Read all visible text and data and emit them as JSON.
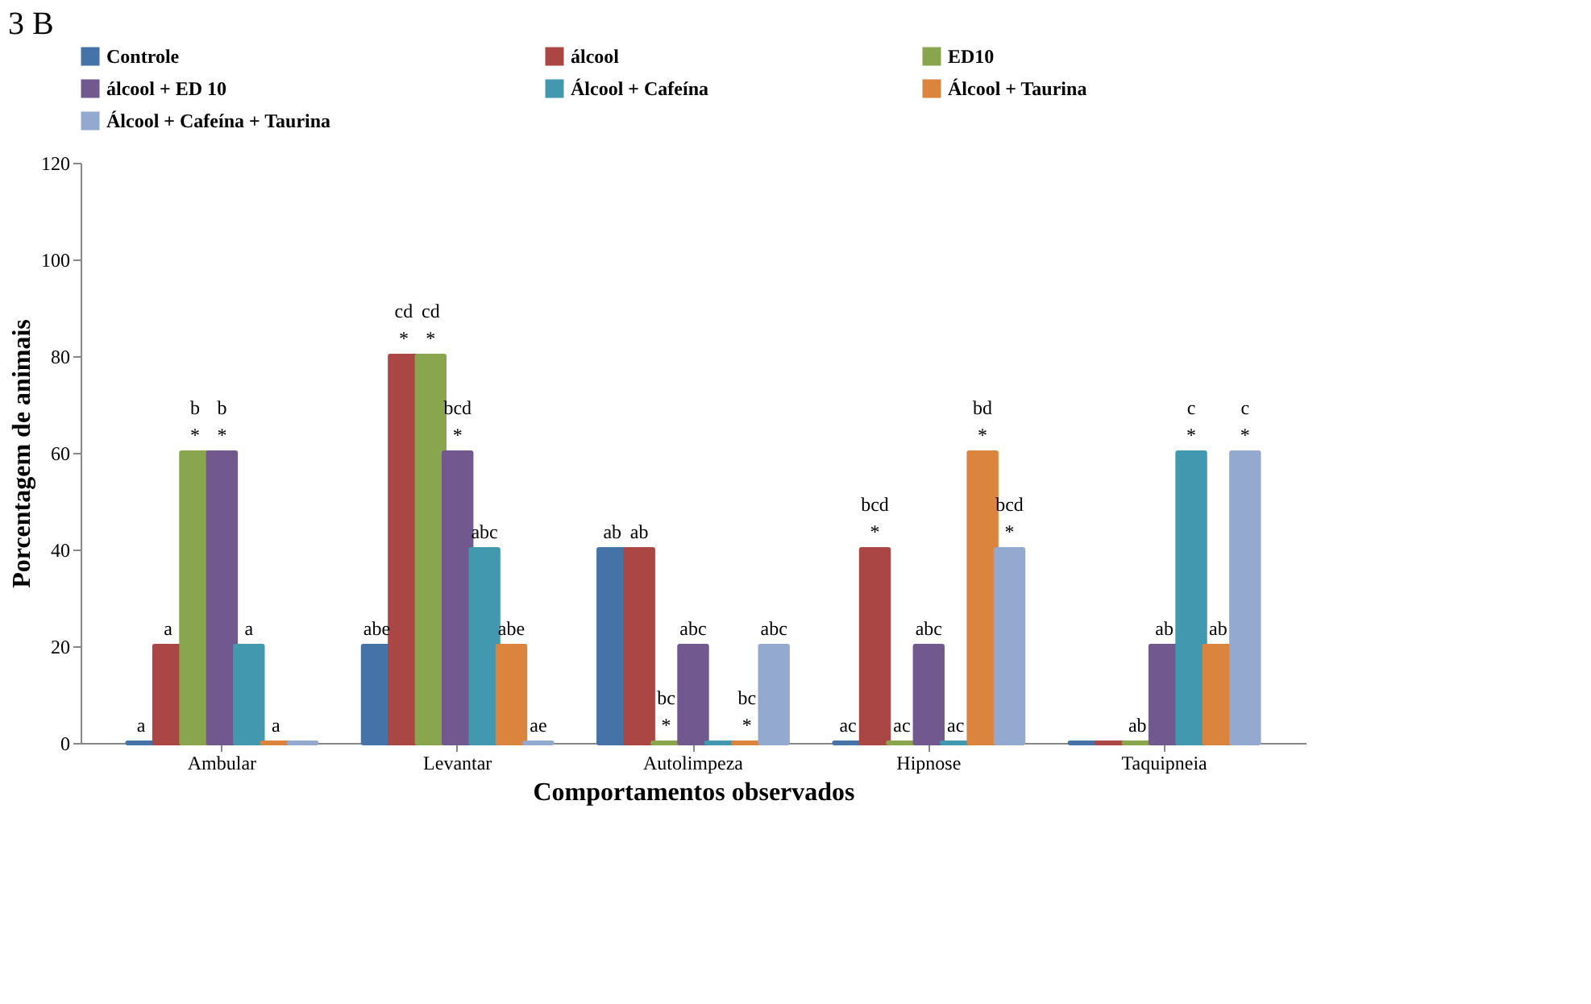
{
  "chart_data": {
    "type": "bar",
    "title": "3 B",
    "xlabel": "Comportamentos observados",
    "ylabel": "Porcentagem de animais",
    "categories": [
      "Ambular",
      "Levantar",
      "Autolimpeza",
      "Hipnose",
      "Taquipneia"
    ],
    "series": [
      {
        "name": "Controle",
        "color": "#4572a7",
        "values": [
          0,
          20,
          40,
          0,
          0
        ],
        "value_labels": [
          "a",
          "abe",
          "ab",
          "ac",
          null
        ]
      },
      {
        "name": "álcool",
        "color": "#aa4643",
        "values": [
          20,
          80,
          40,
          40,
          0
        ],
        "value_labels": [
          "a",
          "cd\n*",
          "ab",
          "bcd\n*",
          null
        ]
      },
      {
        "name": "ED10",
        "color": "#89a54e",
        "values": [
          60,
          80,
          0,
          0,
          0
        ],
        "value_labels": [
          "b\n*",
          "cd\n*",
          "bc\n*",
          "ac",
          "ab"
        ]
      },
      {
        "name": "álcool + ED 10",
        "color": "#71588f",
        "values": [
          60,
          60,
          20,
          20,
          20
        ],
        "value_labels": [
          "b\n*",
          "bcd\n*",
          "abc",
          "abc",
          "ab"
        ]
      },
      {
        "name": "Álcool + Cafeína",
        "color": "#4198af",
        "values": [
          20,
          40,
          0,
          0,
          60
        ],
        "value_labels": [
          "a",
          "abc",
          null,
          "ac",
          "c\n*"
        ]
      },
      {
        "name": "Álcool + Taurina",
        "color": "#db843d",
        "values": [
          0,
          20,
          0,
          60,
          20
        ],
        "value_labels": [
          "a",
          "abe",
          "bc\n*",
          "bd\n*",
          "ab"
        ]
      },
      {
        "name": "Álcool + Cafeína + Taurina",
        "color": "#93a9cf",
        "values": [
          0,
          0,
          20,
          40,
          60
        ],
        "value_labels": [
          null,
          "ae",
          "abc",
          "bcd\n*",
          "c\n*"
        ]
      }
    ],
    "ylim": [
      0,
      120
    ],
    "yticks": [
      0,
      20,
      40,
      60,
      80,
      100,
      120
    ],
    "grid": false,
    "legend": "top"
  }
}
